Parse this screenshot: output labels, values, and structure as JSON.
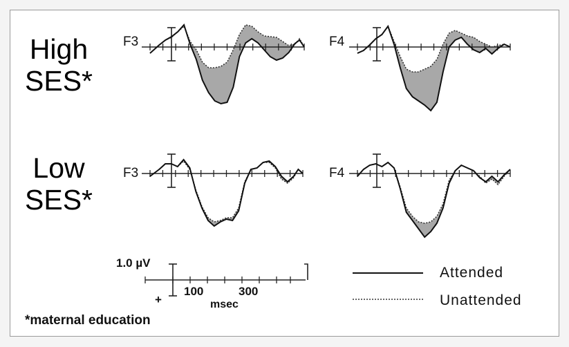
{
  "chart_data": {
    "type": "line",
    "groups": [
      {
        "label_line1": "High",
        "label_line2": "SES*"
      },
      {
        "label_line1": "Low",
        "label_line2": "SES*"
      }
    ],
    "channels": [
      "F3",
      "F4"
    ],
    "series": [
      {
        "name": "Attended",
        "style": "solid"
      },
      {
        "name": "Unattended",
        "style": "dotted"
      }
    ],
    "difference_fill": "#a8a8a8",
    "scale": {
      "amplitude_label": "1.0 µV",
      "polarity_sign": "+",
      "ticks": [
        "100",
        "300"
      ],
      "time_unit": "msec"
    },
    "footnote": "*maternal education"
  }
}
